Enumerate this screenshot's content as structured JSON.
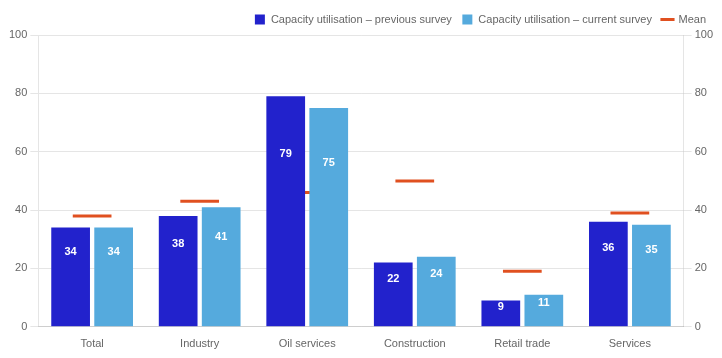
{
  "chart_data": {
    "type": "bar",
    "categories": [
      "Total",
      "Industry",
      "Oil services",
      "Construction",
      "Retail trade",
      "Services"
    ],
    "series": [
      {
        "name": "Capacity utilisation – previous survey",
        "type": "bar",
        "color": "#2222cc",
        "values": [
          34,
          38,
          79,
          22,
          9,
          36
        ],
        "data_labels": true
      },
      {
        "name": "Capacity utilisation – current survey",
        "type": "bar",
        "color": "#55aadd",
        "values": [
          34,
          41,
          75,
          24,
          11,
          35
        ],
        "data_labels": true
      },
      {
        "name": "Mean",
        "type": "line",
        "color": "#e05020",
        "marker": "line",
        "line_style": "none",
        "values": [
          38,
          43,
          46,
          50,
          19,
          39
        ]
      }
    ],
    "ylim": [
      0,
      100
    ],
    "yticks": [
      0,
      20,
      40,
      60,
      80,
      100
    ],
    "y2lim": [
      0,
      100
    ],
    "y2ticks": [
      0,
      20,
      40,
      60,
      80,
      100
    ],
    "grid": true,
    "legend": "upper right"
  }
}
